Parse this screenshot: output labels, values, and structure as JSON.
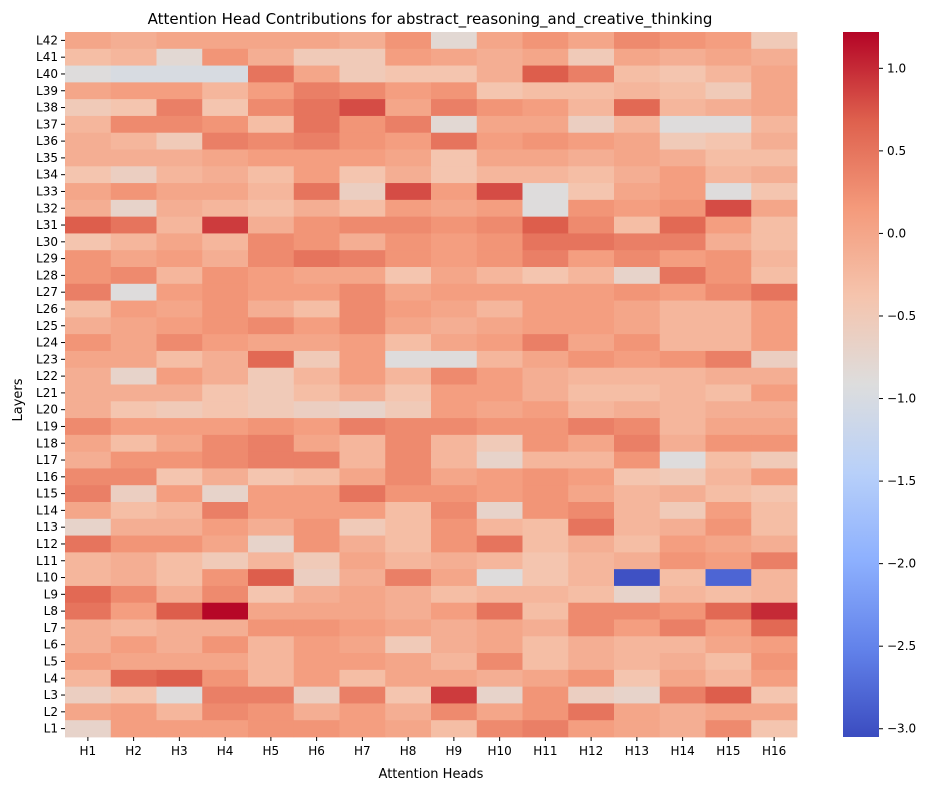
{
  "chart_data": {
    "type": "heatmap",
    "title": "Attention Head Contributions for abstract_reasoning_and_creative_thinking",
    "xlabel": "Attention Heads",
    "ylabel": "Layers",
    "x_labels": [
      "H1",
      "H2",
      "H3",
      "H4",
      "H5",
      "H6",
      "H7",
      "H8",
      "H9",
      "H10",
      "H11",
      "H12",
      "H13",
      "H14",
      "H15",
      "H16"
    ],
    "y_labels": [
      "L42",
      "L41",
      "L40",
      "L39",
      "L38",
      "L37",
      "L36",
      "L35",
      "L34",
      "L33",
      "L32",
      "L31",
      "L30",
      "L29",
      "L28",
      "L27",
      "L26",
      "L25",
      "L24",
      "L23",
      "L22",
      "L21",
      "L20",
      "L19",
      "L18",
      "L17",
      "L16",
      "L15",
      "L14",
      "L13",
      "L12",
      "L11",
      "L10",
      "L9",
      "L8",
      "L7",
      "L6",
      "L5",
      "L4",
      "L3",
      "L2",
      "L1"
    ],
    "values": [
      [
        0.0,
        -0.1,
        0.0,
        0.0,
        0.0,
        0.0,
        -0.1,
        0.2,
        -0.8,
        0.0,
        0.2,
        0.0,
        0.3,
        0.2,
        0.1,
        -0.5
      ],
      [
        -0.3,
        -0.2,
        -0.8,
        0.2,
        -0.1,
        -0.5,
        -0.5,
        0.1,
        0.0,
        -0.1,
        0.0,
        -0.5,
        0.0,
        -0.1,
        0.0,
        -0.1
      ],
      [
        -0.9,
        -1.0,
        -1.0,
        -1.0,
        0.5,
        0.0,
        -0.5,
        -0.4,
        -0.4,
        -0.1,
        0.7,
        0.4,
        -0.3,
        -0.4,
        -0.2,
        0.0
      ],
      [
        0.0,
        0.1,
        0.1,
        -0.2,
        0.1,
        0.4,
        0.3,
        0.1,
        0.2,
        -0.4,
        -0.3,
        -0.3,
        -0.2,
        -0.3,
        -0.5,
        0.0
      ],
      [
        -0.5,
        -0.4,
        0.4,
        -0.4,
        0.3,
        0.5,
        0.8,
        0.0,
        0.4,
        0.2,
        0.1,
        -0.2,
        0.6,
        -0.2,
        -0.1,
        0.0
      ],
      [
        -0.2,
        0.3,
        0.3,
        0.2,
        -0.3,
        0.5,
        0.2,
        0.4,
        -0.8,
        0.0,
        0.0,
        -0.6,
        -0.2,
        -0.9,
        -0.9,
        -0.2
      ],
      [
        -0.1,
        -0.2,
        -0.5,
        0.4,
        0.3,
        0.4,
        0.2,
        0.1,
        0.5,
        0.1,
        0.2,
        0.1,
        0.0,
        -0.5,
        -0.4,
        -0.1
      ],
      [
        -0.1,
        -0.1,
        -0.1,
        0.0,
        0.1,
        0.1,
        0.1,
        0.0,
        -0.4,
        0.0,
        0.0,
        -0.1,
        0.0,
        -0.1,
        -0.3,
        -0.3
      ],
      [
        -0.4,
        -0.6,
        -0.2,
        -0.1,
        -0.3,
        0.1,
        -0.4,
        -0.1,
        -0.4,
        -0.2,
        -0.2,
        -0.3,
        -0.1,
        0.1,
        -0.2,
        -0.1
      ],
      [
        0.0,
        0.2,
        0.0,
        0.0,
        -0.2,
        0.5,
        -0.6,
        0.8,
        0.1,
        0.8,
        -0.9,
        -0.4,
        0.0,
        0.1,
        -0.9,
        -0.4
      ],
      [
        -0.1,
        -0.7,
        -0.1,
        -0.2,
        -0.3,
        -0.1,
        -0.3,
        0.1,
        0.0,
        0.1,
        -0.9,
        0.2,
        0.1,
        0.2,
        0.8,
        0.0
      ],
      [
        0.7,
        0.5,
        -0.2,
        0.9,
        -0.1,
        0.2,
        0.3,
        0.3,
        0.2,
        0.3,
        0.7,
        0.3,
        -0.3,
        0.6,
        0.1,
        -0.3
      ],
      [
        -0.4,
        -0.2,
        0.0,
        -0.2,
        0.3,
        0.2,
        -0.1,
        0.2,
        0.1,
        0.2,
        0.5,
        0.5,
        0.4,
        0.4,
        -0.1,
        -0.3
      ],
      [
        0.2,
        0.0,
        0.1,
        -0.1,
        0.3,
        0.5,
        0.4,
        0.2,
        0.1,
        0.2,
        0.4,
        0.1,
        0.3,
        0.1,
        0.2,
        -0.2
      ],
      [
        0.2,
        0.3,
        -0.2,
        0.2,
        0.1,
        0.0,
        0.0,
        -0.4,
        0.0,
        -0.2,
        -0.4,
        -0.2,
        -0.7,
        0.5,
        0.2,
        -0.3
      ],
      [
        0.4,
        -0.9,
        0.1,
        0.2,
        0.1,
        0.1,
        0.3,
        0.0,
        0.1,
        0.1,
        0.1,
        0.1,
        0.2,
        0.1,
        0.3,
        0.5
      ],
      [
        -0.3,
        0.1,
        0.0,
        0.2,
        -0.1,
        -0.3,
        0.3,
        0.1,
        0.0,
        -0.2,
        0.1,
        0.1,
        0.0,
        -0.2,
        -0.2,
        0.1
      ],
      [
        -0.1,
        0.0,
        0.1,
        0.2,
        0.3,
        0.1,
        0.3,
        0.0,
        -0.1,
        0.0,
        0.1,
        0.1,
        0.0,
        -0.2,
        -0.2,
        0.1
      ],
      [
        0.2,
        0.0,
        0.3,
        0.1,
        0.0,
        0.0,
        0.1,
        -0.3,
        0.0,
        0.1,
        0.4,
        0.0,
        0.2,
        -0.2,
        -0.2,
        0.1
      ],
      [
        0.0,
        0.0,
        -0.3,
        -0.1,
        0.6,
        -0.5,
        0.1,
        -0.9,
        -0.9,
        -0.2,
        0.0,
        0.2,
        0.1,
        0.2,
        0.4,
        -0.6
      ],
      [
        -0.1,
        -0.7,
        0.1,
        -0.1,
        -0.5,
        -0.2,
        0.1,
        -0.2,
        0.3,
        0.1,
        -0.1,
        -0.2,
        -0.2,
        -0.2,
        -0.1,
        -0.1
      ],
      [
        -0.1,
        -0.1,
        -0.1,
        -0.4,
        -0.5,
        -0.3,
        -0.1,
        -0.4,
        0.1,
        0.1,
        -0.1,
        -0.3,
        -0.3,
        -0.2,
        -0.3,
        0.1
      ],
      [
        -0.1,
        -0.4,
        -0.5,
        -0.4,
        -0.5,
        -0.6,
        -0.7,
        -0.5,
        0.1,
        0.0,
        0.1,
        -0.2,
        -0.1,
        -0.2,
        -0.1,
        -0.1
      ],
      [
        0.3,
        0.1,
        0.1,
        0.1,
        0.2,
        0.1,
        0.4,
        0.3,
        0.3,
        0.2,
        0.2,
        0.4,
        0.3,
        -0.2,
        0.0,
        0.0
      ],
      [
        0.0,
        -0.3,
        0.0,
        0.3,
        0.4,
        0.0,
        -0.2,
        0.3,
        -0.2,
        -0.5,
        0.2,
        0.0,
        0.4,
        -0.1,
        0.2,
        0.2
      ],
      [
        -0.1,
        0.2,
        0.2,
        0.3,
        0.4,
        0.4,
        -0.2,
        0.3,
        -0.2,
        -0.7,
        -0.2,
        -0.2,
        0.2,
        -0.9,
        -0.3,
        -0.5
      ],
      [
        0.3,
        0.3,
        -0.4,
        -0.1,
        -0.4,
        -0.3,
        0.0,
        0.3,
        0.0,
        0.1,
        0.2,
        0.1,
        -0.4,
        -0.5,
        -0.2,
        0.1
      ],
      [
        0.4,
        -0.6,
        0.1,
        -0.7,
        0.1,
        0.1,
        0.5,
        0.2,
        0.2,
        0.1,
        0.2,
        0.0,
        -0.2,
        -0.1,
        -0.3,
        -0.4
      ],
      [
        0.0,
        -0.3,
        -0.2,
        0.4,
        0.1,
        0.1,
        0.1,
        -0.3,
        0.3,
        -0.7,
        0.2,
        0.3,
        -0.2,
        -0.5,
        0.1,
        -0.3
      ],
      [
        -0.7,
        -0.1,
        -0.1,
        0.1,
        -0.1,
        0.2,
        -0.5,
        -0.3,
        0.2,
        -0.2,
        -0.3,
        0.5,
        -0.2,
        -0.1,
        0.2,
        -0.3
      ],
      [
        0.5,
        0.2,
        0.2,
        0.0,
        -0.7,
        0.2,
        -0.1,
        -0.3,
        0.2,
        0.5,
        -0.3,
        -0.1,
        -0.3,
        0.1,
        0.0,
        -0.1
      ],
      [
        -0.2,
        -0.1,
        -0.3,
        -0.5,
        -0.2,
        -0.5,
        0.0,
        -0.2,
        -0.1,
        -0.2,
        -0.4,
        -0.2,
        -0.1,
        0.2,
        0.1,
        0.4
      ],
      [
        -0.2,
        -0.1,
        -0.3,
        0.2,
        0.7,
        -0.6,
        -0.1,
        0.4,
        0.0,
        -0.9,
        -0.4,
        -0.2,
        -3.0,
        -0.3,
        -2.8,
        -0.2
      ],
      [
        0.6,
        0.3,
        -0.1,
        0.3,
        -0.4,
        -0.1,
        0.0,
        -0.1,
        -0.3,
        -0.2,
        -0.2,
        -0.3,
        -0.7,
        -0.2,
        -0.3,
        -0.2
      ],
      [
        0.5,
        0.1,
        0.7,
        1.2,
        0.0,
        0.0,
        0.0,
        -0.1,
        0.1,
        0.5,
        -0.3,
        0.3,
        0.3,
        0.2,
        0.6,
        1.0
      ],
      [
        -0.1,
        -0.2,
        -0.1,
        -0.1,
        0.2,
        0.2,
        0.1,
        0.0,
        -0.1,
        0.0,
        -0.1,
        0.3,
        0.1,
        0.4,
        0.1,
        0.6
      ],
      [
        -0.1,
        0.1,
        -0.1,
        0.2,
        -0.2,
        0.1,
        0.0,
        -0.5,
        -0.1,
        0.0,
        -0.3,
        -0.1,
        -0.2,
        -0.2,
        0.0,
        0.1
      ],
      [
        0.1,
        0.0,
        0.0,
        0.0,
        -0.2,
        0.1,
        0.1,
        0.0,
        -0.2,
        0.3,
        -0.3,
        -0.1,
        -0.2,
        -0.1,
        -0.3,
        0.2
      ],
      [
        -0.2,
        0.6,
        0.7,
        0.2,
        -0.2,
        0.1,
        -0.3,
        0.0,
        0.0,
        -0.1,
        0.0,
        0.2,
        -0.4,
        0.0,
        -0.2,
        0.1
      ],
      [
        -0.6,
        -0.4,
        -0.9,
        0.4,
        0.4,
        -0.6,
        0.4,
        -0.4,
        0.9,
        -0.7,
        0.2,
        -0.6,
        -0.7,
        0.4,
        0.7,
        -0.4
      ],
      [
        0.0,
        0.1,
        -0.2,
        0.3,
        0.2,
        -0.1,
        0.1,
        -0.1,
        0.3,
        0.0,
        0.2,
        0.5,
        0.0,
        -0.1,
        0.0,
        0.0
      ],
      [
        -0.7,
        0.1,
        0.1,
        0.1,
        0.2,
        0.2,
        0.1,
        0.0,
        -0.3,
        0.3,
        0.4,
        0.1,
        0.0,
        -0.1,
        0.3,
        -0.4
      ]
    ],
    "colormap": "coolwarm",
    "vmin": -3.05,
    "vmax": 1.22,
    "colorbar_ticks": [
      1.0,
      0.5,
      0.0,
      -0.5,
      -1.0,
      -1.5,
      -2.0,
      -2.5,
      -3.0
    ],
    "colorbar_tick_labels": [
      "1.0",
      "0.5",
      "0.0",
      "−0.5",
      "−1.0",
      "−1.5",
      "−2.0",
      "−2.5",
      "−3.0"
    ]
  }
}
